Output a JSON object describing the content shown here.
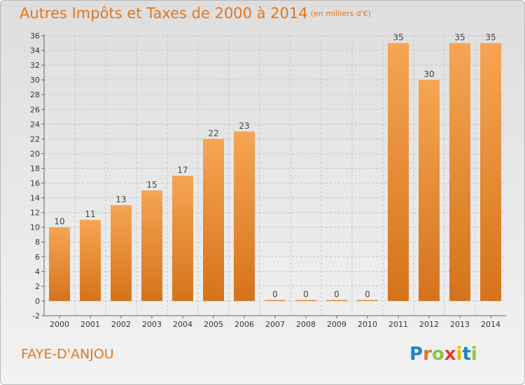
{
  "page": {
    "title": "Autres Impôts et Taxes de 2000 à 2014",
    "subtitle": "(en milliers d'€)",
    "location": "FAYE-D'ANJOU",
    "logo": "Proxiti"
  },
  "colors": {
    "title": "#e2761f",
    "bar_top": "#f6a553",
    "bar_bottom": "#d5731b",
    "logo_letters": [
      "#1a86c8",
      "#e2761f",
      "#8cc63f",
      "#e53935",
      "#f5b400",
      "#1a86c8",
      "#8cc63f"
    ]
  },
  "chart_data": {
    "type": "bar",
    "title": "Autres Impôts et Taxes de 2000 à 2014",
    "subtitle": "(en milliers d'€)",
    "categories": [
      "2000",
      "2001",
      "2002",
      "2003",
      "2004",
      "2005",
      "2006",
      "2007",
      "2008",
      "2009",
      "2010",
      "2011",
      "2012",
      "2013",
      "2014"
    ],
    "values": [
      10,
      11,
      13,
      15,
      17,
      22,
      23,
      0,
      0,
      0,
      0,
      35,
      30,
      35,
      35
    ],
    "ylim": [
      -2,
      36
    ],
    "yticks": [
      -2,
      0,
      2,
      4,
      6,
      8,
      10,
      12,
      14,
      16,
      18,
      20,
      22,
      24,
      26,
      28,
      30,
      32,
      34,
      36
    ],
    "grid": true,
    "xlabel": "",
    "ylabel": ""
  }
}
